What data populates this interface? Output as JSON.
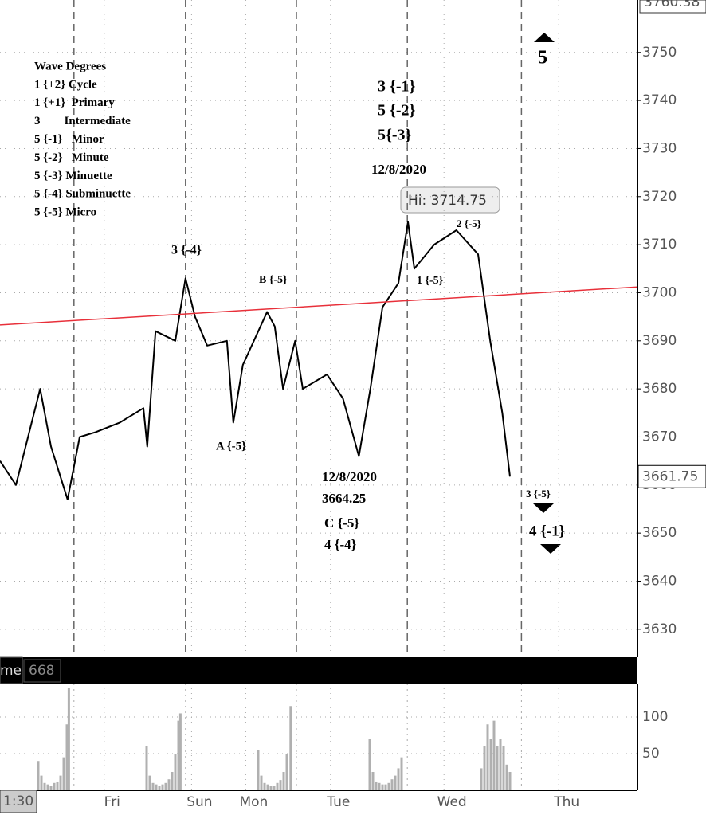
{
  "chart_data": {
    "type": "line",
    "top_price_label": "3760.38",
    "last_price_label": "3661.75",
    "high_label": "Hi: 3714.75",
    "volume_label": "me",
    "volume_value": "668",
    "time_label": "1:30",
    "legend_lines": [
      "Wave Degrees",
      "1 {+2} Cycle",
      "1 {+1}  Primary",
      "3        Intermediate",
      "5 {-1}   Minor",
      "5 {-2}   Minute",
      "5 {-3} Minuette",
      "5 {-4} Subminuette",
      "5 {-5} Micro"
    ],
    "annotations": [
      "3 {-4}",
      "B {-5}",
      "A {-5}",
      "12/8/2020",
      "3664.25",
      "C {-5}",
      "4 {-4}",
      "3 {-1}",
      "5 {-2}",
      "5{-3}",
      "12/8/2020",
      "2 {-5}",
      "1 {-5}",
      "3 {-5}",
      "4 {-1}",
      "5"
    ],
    "xlim": [
      0,
      100
    ],
    "xticks": [
      {
        "value": 0.5,
        "label": "1:30"
      },
      {
        "value": 17.6,
        "label": "Fri"
      },
      {
        "value": 31.3,
        "label": "Sun"
      },
      {
        "value": 39.8,
        "label": "Mon"
      },
      {
        "value": 53.1,
        "label": "Tue"
      },
      {
        "value": 70.9,
        "label": "Wed"
      },
      {
        "value": 88.9,
        "label": "Thu"
      }
    ],
    "session_breaks": [
      11.6,
      29.1,
      46.5,
      63.9,
      81.8
    ],
    "ylim": [
      3625,
      3760.9
    ],
    "yticks": [
      3630,
      3640,
      3650,
      3660,
      3670,
      3680,
      3690,
      3700,
      3710,
      3720,
      3730,
      3740,
      3750
    ],
    "grid": true,
    "series": [
      {
        "name": "Price",
        "color": "#000000",
        "x": [
          0,
          2.5,
          6.3,
          8,
          10.6,
          12.5,
          15,
          18.8,
          22.5,
          23.1,
          24.4,
          27.5,
          29.1,
          30.6,
          32.5,
          35.6,
          36.6,
          38.1,
          41.9,
          43.1,
          44.4,
          46.3,
          47.5,
          51.3,
          53.8,
          56.3,
          58.1,
          60,
          62.5,
          64,
          65,
          68.1,
          71.6,
          75,
          76.9,
          78.8,
          80
        ],
        "values": [
          3665,
          3660,
          3680,
          3668,
          3657,
          3670,
          3671,
          3673,
          3676,
          3668,
          3692,
          3690,
          3703,
          3695,
          3689,
          3690,
          3673,
          3685,
          3696,
          3693,
          3680,
          3690,
          3680,
          3683,
          3678,
          3666,
          3680,
          3697,
          3702,
          3714.75,
          3705,
          3710,
          3713,
          3708,
          3690,
          3675,
          3661.75
        ]
      },
      {
        "name": "Trend",
        "color": "#e8303a",
        "x": [
          0,
          100
        ],
        "values": [
          3693.3,
          3701.2
        ]
      }
    ],
    "volume": {
      "color": "#b0b0b0",
      "ylim": [
        0,
        149
      ],
      "yticks": [
        50,
        100
      ],
      "x": [
        6,
        6.5,
        7,
        7.5,
        8,
        8.5,
        9,
        9.5,
        10,
        10.5,
        10.8,
        23,
        23.5,
        24,
        24.5,
        25,
        25.5,
        26,
        26.5,
        27,
        27.5,
        28,
        28.3,
        40.5,
        41,
        41.5,
        42,
        42.5,
        43,
        43.5,
        44,
        44.5,
        45,
        45.6,
        58,
        58.5,
        59,
        59.5,
        60,
        60.5,
        61,
        61.5,
        62,
        62.5,
        63,
        75.5,
        76,
        76.5,
        77,
        77.5,
        78,
        78.5,
        79,
        79.5,
        80
      ],
      "values": [
        40,
        20,
        10,
        8,
        6,
        10,
        12,
        20,
        45,
        90,
        140,
        60,
        20,
        10,
        8,
        6,
        8,
        10,
        15,
        25,
        50,
        95,
        105,
        55,
        20,
        10,
        8,
        6,
        6,
        10,
        14,
        25,
        50,
        115,
        70,
        25,
        12,
        10,
        8,
        8,
        10,
        15,
        20,
        30,
        45,
        30,
        60,
        90,
        70,
        95,
        60,
        70,
        60,
        35,
        25
      ]
    }
  }
}
